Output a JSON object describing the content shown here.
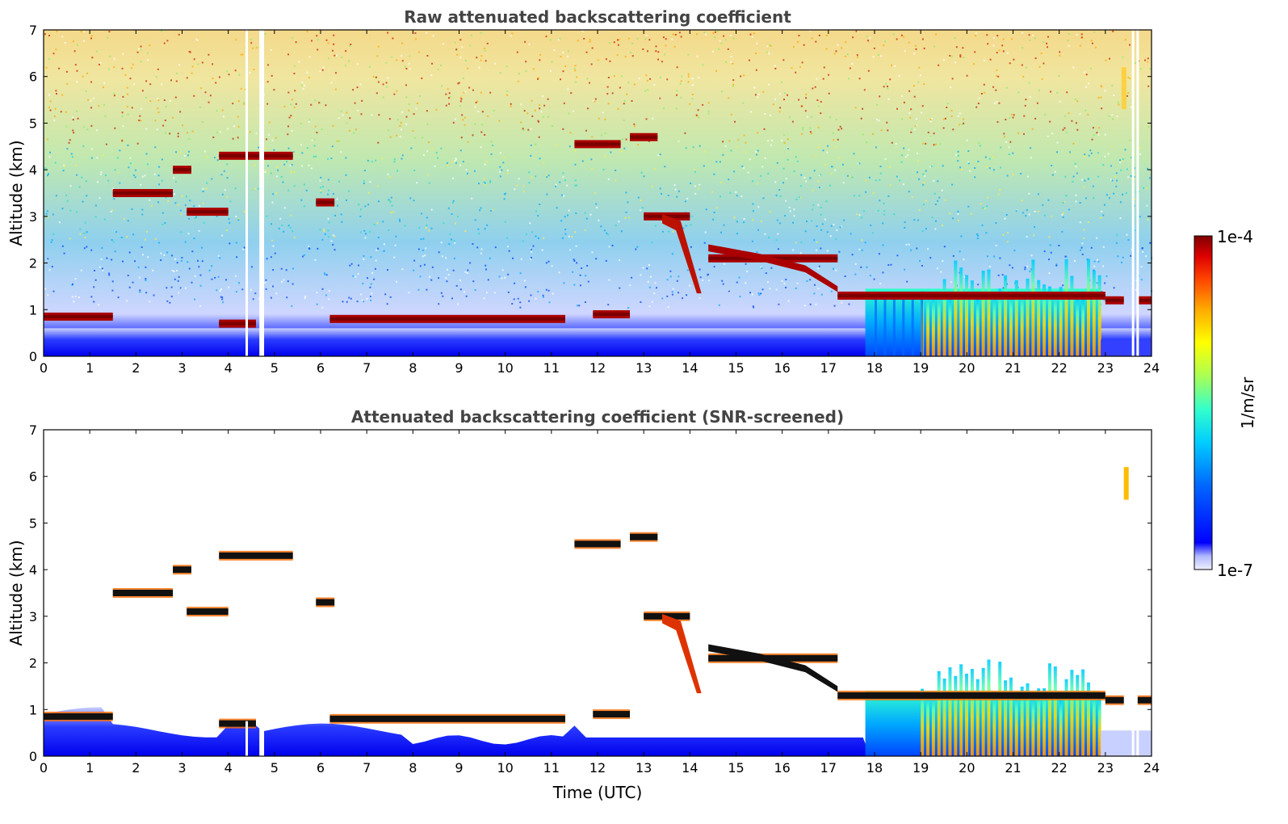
{
  "chart_data": [
    {
      "type": "heatmap",
      "title": "Raw attenuated backscattering coefficient",
      "xlabel": "",
      "ylabel": "Altitude (km)",
      "xlim": [
        0,
        24
      ],
      "ylim": [
        0,
        7
      ],
      "xticks": [
        "0",
        "1",
        "2",
        "3",
        "4",
        "5",
        "6",
        "7",
        "8",
        "9",
        "10",
        "11",
        "12",
        "13",
        "14",
        "15",
        "16",
        "17",
        "18",
        "19",
        "20",
        "21",
        "22",
        "23",
        "24"
      ],
      "yticks": [
        "0",
        "1",
        "2",
        "3",
        "4",
        "5",
        "6",
        "7"
      ],
      "missing_data_hours": [
        4.4,
        4.7,
        4.75,
        23.6,
        23.7
      ],
      "layers": [
        {
          "start": 0.0,
          "end": 1.5,
          "alt": 0.85
        },
        {
          "start": 1.5,
          "end": 2.8,
          "alt": 3.5
        },
        {
          "start": 3.1,
          "end": 4.0,
          "alt": 3.1
        },
        {
          "start": 2.8,
          "end": 3.2,
          "alt": 4.0
        },
        {
          "start": 3.8,
          "end": 5.4,
          "alt": 4.3
        },
        {
          "start": 5.9,
          "end": 6.3,
          "alt": 3.3
        },
        {
          "start": 3.8,
          "end": 4.6,
          "alt": 0.7
        },
        {
          "start": 6.2,
          "end": 11.3,
          "alt": 0.8
        },
        {
          "start": 11.5,
          "end": 12.5,
          "alt": 4.55
        },
        {
          "start": 12.7,
          "end": 13.3,
          "alt": 4.7
        },
        {
          "start": 11.9,
          "end": 12.7,
          "alt": 0.9
        },
        {
          "start": 13.0,
          "end": 14.0,
          "alt": 3.0
        },
        {
          "start": 14.4,
          "end": 17.2,
          "alt": 2.1
        },
        {
          "start": 17.2,
          "end": 23.0,
          "alt": 1.3
        },
        {
          "start": 23.0,
          "end": 23.4,
          "alt": 1.2
        },
        {
          "start": 23.7,
          "end": 24.0,
          "alt": 1.2
        }
      ],
      "convective_columns": {
        "start": 17.8,
        "end": 22.9,
        "top_alt": 2.0
      }
    },
    {
      "type": "heatmap",
      "title": "Attenuated backscattering coefficient (SNR-screened)",
      "xlabel": "Time (UTC)",
      "ylabel": "Altitude (km)",
      "xlim": [
        0,
        24
      ],
      "ylim": [
        0,
        7
      ],
      "xticks": [
        "0",
        "1",
        "2",
        "3",
        "4",
        "5",
        "6",
        "7",
        "8",
        "9",
        "10",
        "11",
        "12",
        "13",
        "14",
        "15",
        "16",
        "17",
        "18",
        "19",
        "20",
        "21",
        "22",
        "23",
        "24"
      ],
      "yticks": [
        "0",
        "1",
        "2",
        "3",
        "4",
        "5",
        "6",
        "7"
      ]
    }
  ],
  "colorbar": {
    "label": "1/m/sr",
    "max_label": "1e-4",
    "min_label": "1e-7",
    "scale": "log",
    "colormap": "jet",
    "colors": [
      "#eef0ff",
      "#b0b8ff",
      "#0000ff",
      "#0066ff",
      "#00ccff",
      "#33ffcc",
      "#aaff55",
      "#ffff00",
      "#ffaa00",
      "#ff4400",
      "#dd0000",
      "#800000"
    ]
  }
}
